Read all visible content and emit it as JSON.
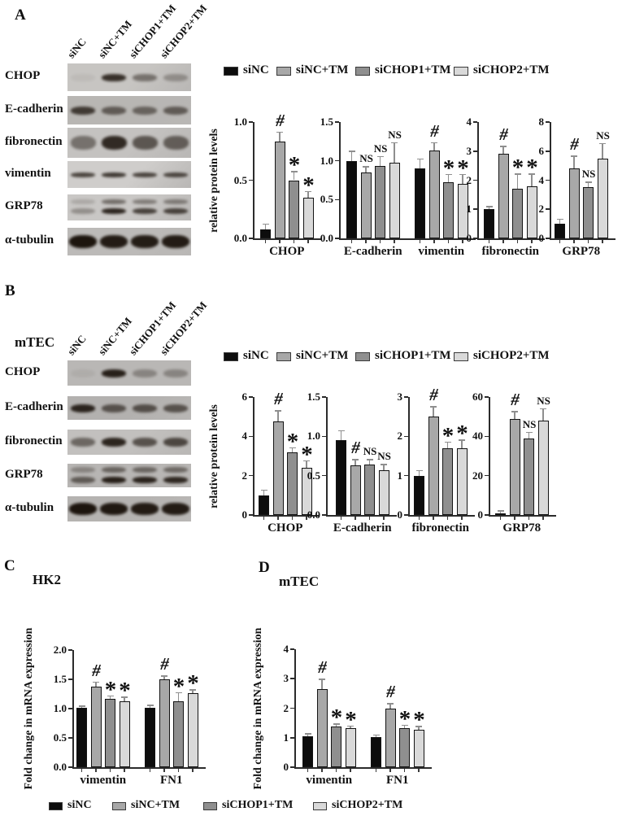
{
  "groups": [
    "siNC",
    "siNC+TM",
    "siCHOP1+TM",
    "siCHOP2+TM"
  ],
  "group_colors": [
    "#0d0d0d",
    "#a8a8a8",
    "#8f8f8f",
    "#d9d9d9"
  ],
  "panels": {
    "a": {
      "letter": "A",
      "lane_labels": [
        "siNC",
        "siNC+TM",
        "siCHOP1+TM",
        "siCHOP2+TM"
      ],
      "blots": [
        {
          "label": "CHOP",
          "bg": "#c7c5c2",
          "style": "single",
          "band_h": 9,
          "band_intensities": [
            0.05,
            0.82,
            0.45,
            0.28
          ]
        },
        {
          "label": "E-cadherin",
          "bg": "#b8b6b3",
          "style": "single",
          "band_h": 10,
          "band_intensities": [
            0.75,
            0.55,
            0.5,
            0.55
          ]
        },
        {
          "label": "fibronectin",
          "bg": "#c4c2c0",
          "style": "smear",
          "band_h": 17,
          "band_intensities": [
            0.45,
            0.85,
            0.6,
            0.55
          ]
        },
        {
          "label": "vimentin",
          "bg": "#cfcdcb",
          "style": "single",
          "band_h": 6,
          "band_intensities": [
            0.72,
            0.78,
            0.72,
            0.7
          ]
        },
        {
          "label": "GRP78",
          "bg": "#c9c7c5",
          "style": "double",
          "band_h": 7,
          "band_intensities": [
            0.3,
            0.88,
            0.72,
            0.72
          ]
        },
        {
          "label": "α-tubulin",
          "bg": "#bcbab8",
          "style": "thick",
          "band_h": 16,
          "band_intensities": [
            0.97,
            0.93,
            0.92,
            0.93
          ]
        }
      ]
    },
    "b": {
      "letter": "B",
      "cell_line": "mTEC",
      "lane_labels": [
        "siNC",
        "siNC+TM",
        "siCHOP1+TM",
        "siCHOP2+TM"
      ],
      "blots": [
        {
          "label": "CHOP",
          "bg": "#b9b7b5",
          "style": "single",
          "band_h": 10,
          "band_intensities": [
            0.06,
            0.9,
            0.3,
            0.3
          ]
        },
        {
          "label": "E-cadherin",
          "bg": "#b3b1af",
          "style": "single",
          "band_h": 10,
          "band_intensities": [
            0.88,
            0.6,
            0.62,
            0.6
          ]
        },
        {
          "label": "fibronectin",
          "bg": "#c2c0be",
          "style": "single",
          "band_h": 11,
          "band_intensities": [
            0.5,
            0.88,
            0.62,
            0.68
          ]
        },
        {
          "label": "GRP78",
          "bg": "#b7b5b3",
          "style": "double",
          "band_h": 8,
          "band_intensities": [
            0.55,
            0.9,
            0.88,
            0.85
          ]
        },
        {
          "label": "α-tubulin",
          "bg": "#b5b3b1",
          "style": "thick",
          "band_h": 15,
          "band_intensities": [
            0.97,
            0.95,
            0.93,
            0.93
          ]
        }
      ]
    },
    "c": {
      "letter": "C",
      "title": "HK2"
    },
    "d": {
      "letter": "D",
      "title": "mTEC"
    }
  },
  "legend": {
    "panel_a_items": [
      "siNC",
      "siNC+TM",
      "siCHOP1+TM",
      "siCHOP2+TM"
    ],
    "panel_b_items": [
      "siNC",
      "siNC+TM",
      "siCHOP1+TM",
      "siCHOP2+TM"
    ],
    "bottom_items": [
      "siNC",
      "siNC+TM",
      "siCHOP1+TM",
      "siCHOP2+TM"
    ]
  },
  "chart_data": [
    {
      "id": "A_CHOP",
      "panel": "A",
      "type": "bar",
      "ylabel": "relative protein levels",
      "ylim": [
        0,
        1.0
      ],
      "yticks": [
        "1.0",
        "0.5",
        "0.0"
      ],
      "categories": [
        "CHOP"
      ],
      "series": [
        {
          "name": "siNC",
          "values": [
            0.08
          ],
          "errors": [
            0.04
          ],
          "sig": [
            ""
          ]
        },
        {
          "name": "siNC+TM",
          "values": [
            0.83
          ],
          "errors": [
            0.08
          ],
          "sig": [
            "#"
          ]
        },
        {
          "name": "siCHOP1+TM",
          "values": [
            0.5
          ],
          "errors": [
            0.07
          ],
          "sig": [
            "*"
          ]
        },
        {
          "name": "siCHOP2+TM",
          "values": [
            0.35
          ],
          "errors": [
            0.05
          ],
          "sig": [
            "*"
          ]
        }
      ]
    },
    {
      "id": "A_ECAD_VIM",
      "panel": "A",
      "type": "bar",
      "ylabel": "",
      "ylim": [
        0,
        1.5
      ],
      "yticks": [
        "1.5",
        "1.0",
        "0.5",
        "0.0"
      ],
      "categories": [
        "E-cadherin",
        "vimentin"
      ],
      "series": [
        {
          "name": "siNC",
          "values": [
            1.0,
            0.9
          ],
          "errors": [
            0.12,
            0.12
          ],
          "sig": [
            "",
            ""
          ]
        },
        {
          "name": "siNC+TM",
          "values": [
            0.85,
            1.13
          ],
          "errors": [
            0.07,
            0.1
          ],
          "sig": [
            "NS",
            "#"
          ]
        },
        {
          "name": "siCHOP1+TM",
          "values": [
            0.93,
            0.72
          ],
          "errors": [
            0.12,
            0.1
          ],
          "sig": [
            "NS",
            "*"
          ]
        },
        {
          "name": "siCHOP2+TM",
          "values": [
            0.98,
            0.7
          ],
          "errors": [
            0.25,
            0.12
          ],
          "sig": [
            "NS",
            "*"
          ]
        }
      ]
    },
    {
      "id": "A_FIBRONECTIN",
      "panel": "A",
      "type": "bar",
      "ylabel": "",
      "ylim": [
        0,
        4
      ],
      "yticks": [
        "4",
        "3",
        "2",
        "1",
        "0"
      ],
      "categories": [
        "fibronectin"
      ],
      "series": [
        {
          "name": "siNC",
          "values": [
            1.0
          ],
          "errors": [
            0.08
          ],
          "sig": [
            ""
          ]
        },
        {
          "name": "siNC+TM",
          "values": [
            2.9
          ],
          "errors": [
            0.25
          ],
          "sig": [
            "#"
          ]
        },
        {
          "name": "siCHOP1+TM",
          "values": [
            1.7
          ],
          "errors": [
            0.5
          ],
          "sig": [
            "*"
          ]
        },
        {
          "name": "siCHOP2+TM",
          "values": [
            1.8
          ],
          "errors": [
            0.4
          ],
          "sig": [
            "*"
          ]
        }
      ]
    },
    {
      "id": "A_GRP78",
      "panel": "A",
      "type": "bar",
      "ylabel": "",
      "ylim": [
        0,
        8
      ],
      "yticks": [
        "8",
        "6",
        "4",
        "2",
        "0"
      ],
      "categories": [
        "GRP78"
      ],
      "series": [
        {
          "name": "siNC",
          "values": [
            1.0
          ],
          "errors": [
            0.3
          ],
          "sig": [
            ""
          ]
        },
        {
          "name": "siNC+TM",
          "values": [
            4.8
          ],
          "errors": [
            0.85
          ],
          "sig": [
            "#"
          ]
        },
        {
          "name": "siCHOP1+TM",
          "values": [
            3.5
          ],
          "errors": [
            0.35
          ],
          "sig": [
            "NS"
          ]
        },
        {
          "name": "siCHOP2+TM",
          "values": [
            5.5
          ],
          "errors": [
            1.0
          ],
          "sig": [
            "NS"
          ]
        }
      ]
    },
    {
      "id": "B_CHOP",
      "panel": "B",
      "type": "bar",
      "ylabel": "relative protein levels",
      "ylim": [
        0,
        6
      ],
      "yticks": [
        "6",
        "4",
        "2",
        "0"
      ],
      "categories": [
        "CHOP"
      ],
      "series": [
        {
          "name": "siNC",
          "values": [
            1.0
          ],
          "errors": [
            0.25
          ],
          "sig": [
            ""
          ]
        },
        {
          "name": "siNC+TM",
          "values": [
            4.75
          ],
          "errors": [
            0.55
          ],
          "sig": [
            "#"
          ]
        },
        {
          "name": "siCHOP1+TM",
          "values": [
            3.2
          ],
          "errors": [
            0.2
          ],
          "sig": [
            "*"
          ]
        },
        {
          "name": "siCHOP2+TM",
          "values": [
            2.4
          ],
          "errors": [
            0.35
          ],
          "sig": [
            "*"
          ]
        }
      ]
    },
    {
      "id": "B_ECADHERIN",
      "panel": "B",
      "type": "bar",
      "ylabel": "",
      "ylim": [
        0,
        1.5
      ],
      "yticks": [
        "1.5",
        "1.0",
        "0.5",
        "0.0"
      ],
      "categories": [
        "E-cadherin"
      ],
      "series": [
        {
          "name": "siNC",
          "values": [
            0.95
          ],
          "errors": [
            0.12
          ],
          "sig": [
            ""
          ]
        },
        {
          "name": "siNC+TM",
          "values": [
            0.63
          ],
          "errors": [
            0.07
          ],
          "sig": [
            "#"
          ]
        },
        {
          "name": "siCHOP1+TM",
          "values": [
            0.64
          ],
          "errors": [
            0.06
          ],
          "sig": [
            "NS"
          ]
        },
        {
          "name": "siCHOP2+TM",
          "values": [
            0.57
          ],
          "errors": [
            0.07
          ],
          "sig": [
            "NS"
          ]
        }
      ]
    },
    {
      "id": "B_FIBRONECTIN",
      "panel": "B",
      "type": "bar",
      "ylabel": "",
      "ylim": [
        0,
        3
      ],
      "yticks": [
        "3",
        "2",
        "1",
        "0"
      ],
      "categories": [
        "fibronectin"
      ],
      "series": [
        {
          "name": "siNC",
          "values": [
            1.0
          ],
          "errors": [
            0.12
          ],
          "sig": [
            ""
          ]
        },
        {
          "name": "siNC+TM",
          "values": [
            2.5
          ],
          "errors": [
            0.25
          ],
          "sig": [
            "#"
          ]
        },
        {
          "name": "siCHOP1+TM",
          "values": [
            1.7
          ],
          "errors": [
            0.15
          ],
          "sig": [
            "*"
          ]
        },
        {
          "name": "siCHOP2+TM",
          "values": [
            1.7
          ],
          "errors": [
            0.2
          ],
          "sig": [
            "*"
          ]
        }
      ]
    },
    {
      "id": "B_GRP78",
      "panel": "B",
      "type": "bar",
      "ylabel": "",
      "ylim": [
        0,
        60
      ],
      "yticks": [
        "60",
        "40",
        "20",
        "0"
      ],
      "categories": [
        "GRP78"
      ],
      "series": [
        {
          "name": "siNC",
          "values": [
            1
          ],
          "errors": [
            1.0
          ],
          "sig": [
            ""
          ]
        },
        {
          "name": "siNC+TM",
          "values": [
            49
          ],
          "errors": [
            3.5
          ],
          "sig": [
            "#"
          ]
        },
        {
          "name": "siCHOP1+TM",
          "values": [
            39
          ],
          "errors": [
            3.0
          ],
          "sig": [
            "NS"
          ]
        },
        {
          "name": "siCHOP2+TM",
          "values": [
            48
          ],
          "errors": [
            6.0
          ],
          "sig": [
            "NS"
          ]
        }
      ]
    },
    {
      "id": "C_HK2",
      "panel": "C",
      "type": "bar",
      "title": "HK2",
      "ylabel": "Fold change in mRNA expression",
      "ylim": [
        0,
        2.0
      ],
      "yticks": [
        "2.0",
        "1.5",
        "1.0",
        "0.5",
        "0.0"
      ],
      "categories": [
        "vimentin",
        "FN1"
      ],
      "series": [
        {
          "name": "siNC",
          "values": [
            1.02,
            1.02
          ],
          "errors": [
            0.02,
            0.03
          ],
          "sig": [
            "",
            ""
          ]
        },
        {
          "name": "siNC+TM",
          "values": [
            1.38,
            1.5
          ],
          "errors": [
            0.07,
            0.05
          ],
          "sig": [
            "#",
            "#"
          ]
        },
        {
          "name": "siCHOP1+TM",
          "values": [
            1.16,
            1.12
          ],
          "errors": [
            0.05,
            0.15
          ],
          "sig": [
            "*",
            "*"
          ]
        },
        {
          "name": "siCHOP2+TM",
          "values": [
            1.13,
            1.26
          ],
          "errors": [
            0.06,
            0.06
          ],
          "sig": [
            "*",
            "*"
          ]
        }
      ]
    },
    {
      "id": "D_MTEC",
      "panel": "D",
      "type": "bar",
      "title": "mTEC",
      "ylabel": "Fold change in mRNA expression",
      "ylim": [
        0,
        4
      ],
      "yticks": [
        "4",
        "3",
        "2",
        "1",
        "0"
      ],
      "categories": [
        "vimentin",
        "FN1"
      ],
      "series": [
        {
          "name": "siNC",
          "values": [
            1.05,
            1.03
          ],
          "errors": [
            0.08,
            0.05
          ],
          "sig": [
            "",
            ""
          ]
        },
        {
          "name": "siNC+TM",
          "values": [
            2.65,
            2.0
          ],
          "errors": [
            0.33,
            0.15
          ],
          "sig": [
            "#",
            "#"
          ]
        },
        {
          "name": "siCHOP1+TM",
          "values": [
            1.38,
            1.32
          ],
          "errors": [
            0.07,
            0.1
          ],
          "sig": [
            "*",
            "*"
          ]
        },
        {
          "name": "siCHOP2+TM",
          "values": [
            1.33,
            1.27
          ],
          "errors": [
            0.06,
            0.1
          ],
          "sig": [
            "*",
            "*"
          ]
        }
      ]
    }
  ]
}
